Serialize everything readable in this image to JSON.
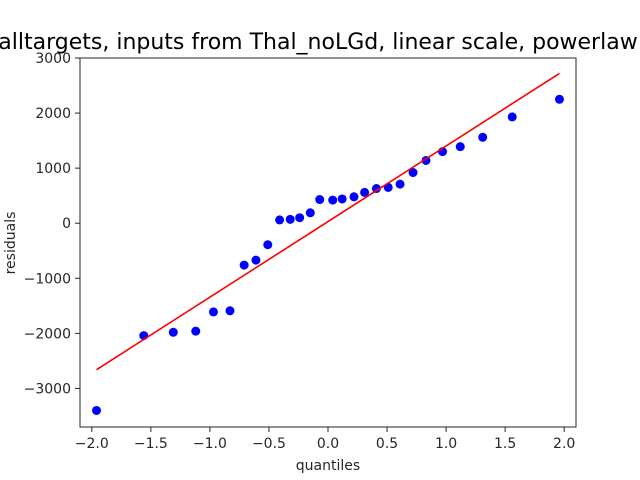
{
  "chart_data": {
    "type": "scatter",
    "title": "alltargets, inputs from Thal_noLGd, linear scale, powerlaw",
    "xlabel": "quantiles",
    "ylabel": "residuals",
    "xlim": [
      -2.1,
      2.1
    ],
    "ylim": [
      -3700,
      3000
    ],
    "xticks": [
      -2.0,
      -1.5,
      -1.0,
      -0.5,
      0.0,
      0.5,
      1.0,
      1.5,
      2.0
    ],
    "xtick_labels": [
      "−2.0",
      "−1.5",
      "−1.0",
      "−0.5",
      "0.0",
      "0.5",
      "1.0",
      "1.5",
      "2.0"
    ],
    "yticks": [
      -3000,
      -2000,
      -1000,
      0,
      1000,
      2000,
      3000
    ],
    "ytick_labels": [
      "−3000",
      "−2000",
      "−1000",
      "0",
      "1000",
      "2000",
      "3000"
    ],
    "grid": false,
    "point_color": "#0000ff",
    "line_color": "#ff0000",
    "points": [
      {
        "x": -1.96,
        "y": -3400
      },
      {
        "x": -1.56,
        "y": -2040
      },
      {
        "x": -1.31,
        "y": -1980
      },
      {
        "x": -1.12,
        "y": -1960
      },
      {
        "x": -0.97,
        "y": -1610
      },
      {
        "x": -0.83,
        "y": -1590
      },
      {
        "x": -0.71,
        "y": -760
      },
      {
        "x": -0.61,
        "y": -670
      },
      {
        "x": -0.51,
        "y": -390
      },
      {
        "x": -0.41,
        "y": 60
      },
      {
        "x": -0.32,
        "y": 70
      },
      {
        "x": -0.24,
        "y": 100
      },
      {
        "x": -0.15,
        "y": 190
      },
      {
        "x": -0.07,
        "y": 430
      },
      {
        "x": 0.04,
        "y": 420
      },
      {
        "x": 0.12,
        "y": 440
      },
      {
        "x": 0.22,
        "y": 480
      },
      {
        "x": 0.31,
        "y": 560
      },
      {
        "x": 0.41,
        "y": 630
      },
      {
        "x": 0.51,
        "y": 650
      },
      {
        "x": 0.61,
        "y": 710
      },
      {
        "x": 0.72,
        "y": 920
      },
      {
        "x": 0.83,
        "y": 1140
      },
      {
        "x": 0.97,
        "y": 1300
      },
      {
        "x": 1.12,
        "y": 1390
      },
      {
        "x": 1.31,
        "y": 1560
      },
      {
        "x": 1.56,
        "y": 1930
      },
      {
        "x": 1.96,
        "y": 2250
      }
    ],
    "fit_line": {
      "x": [
        -1.96,
        1.96
      ],
      "y": [
        -2660,
        2720
      ]
    }
  }
}
